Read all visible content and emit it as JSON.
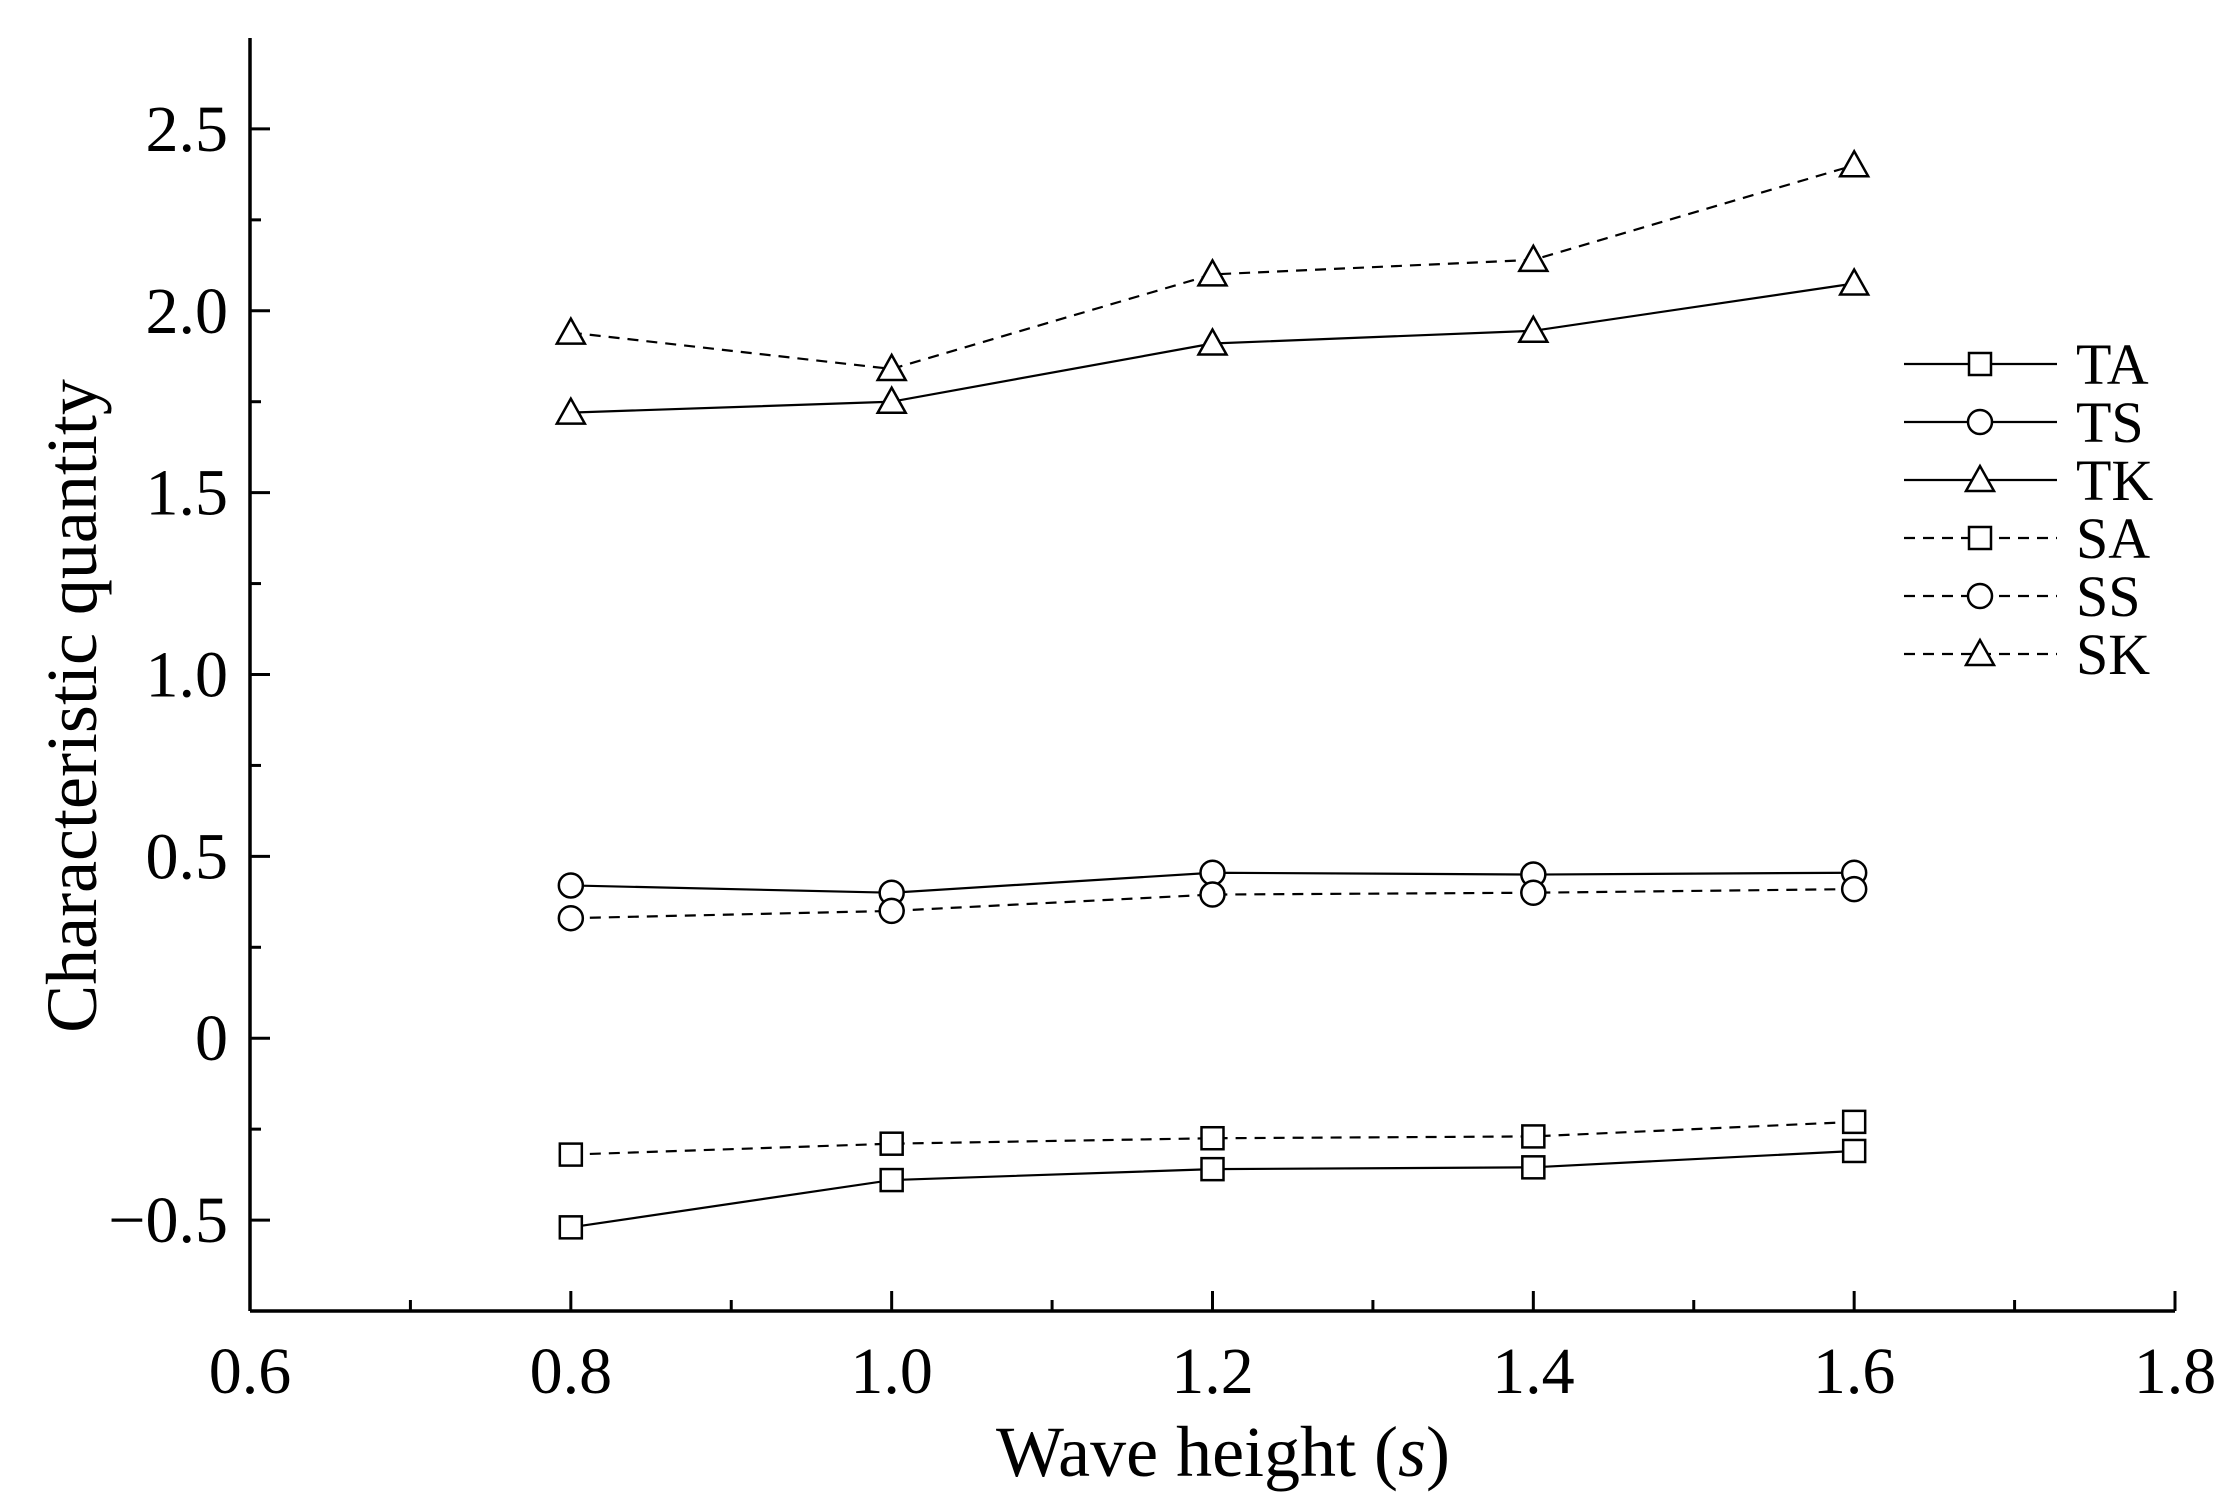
{
  "chart_data": {
    "type": "line",
    "title": "",
    "xlabel_prefix": "Wave height (",
    "xlabel_italic": "s",
    "xlabel_suffix": ")",
    "ylabel": "Characteristic quantity",
    "xlim": [
      0.6,
      1.8
    ],
    "ylim": [
      -0.75,
      2.75
    ],
    "x_ticks": [
      0.6,
      0.8,
      1.0,
      1.2,
      1.4,
      1.6,
      1.8
    ],
    "x_tick_labels": [
      "0.6",
      "0.8",
      "1.0",
      "1.2",
      "1.4",
      "1.6",
      "1.8"
    ],
    "x_minor_ticks": [
      0.7,
      0.9,
      1.1,
      1.3,
      1.5,
      1.7
    ],
    "y_ticks": [
      -0.5,
      0,
      0.5,
      1.0,
      1.5,
      2.0,
      2.5
    ],
    "y_tick_labels": [
      "−0.5",
      "0",
      "0.5",
      "1.0",
      "1.5",
      "2.0",
      "2.5"
    ],
    "y_minor_ticks": [
      -0.25,
      0.25,
      0.75,
      1.25,
      1.75,
      2.25
    ],
    "grid": false,
    "legend_position": "right",
    "x": [
      0.8,
      1.0,
      1.2,
      1.4,
      1.6
    ],
    "series": [
      {
        "name": "TA",
        "marker": "square",
        "line": "solid",
        "values": [
          -0.52,
          -0.39,
          -0.36,
          -0.355,
          -0.31
        ]
      },
      {
        "name": "TS",
        "marker": "circle",
        "line": "solid",
        "values": [
          0.42,
          0.4,
          0.455,
          0.45,
          0.455
        ]
      },
      {
        "name": "TK",
        "marker": "triangle",
        "line": "solid",
        "values": [
          1.72,
          1.75,
          1.91,
          1.945,
          2.075
        ]
      },
      {
        "name": "SA",
        "marker": "square",
        "line": "dashed",
        "values": [
          -0.32,
          -0.29,
          -0.275,
          -0.27,
          -0.23
        ]
      },
      {
        "name": "SS",
        "marker": "circle",
        "line": "dashed",
        "values": [
          0.33,
          0.35,
          0.395,
          0.4,
          0.41
        ]
      },
      {
        "name": "SK",
        "marker": "triangle",
        "line": "dashed",
        "values": [
          1.94,
          1.84,
          2.1,
          2.14,
          2.4
        ]
      }
    ]
  }
}
